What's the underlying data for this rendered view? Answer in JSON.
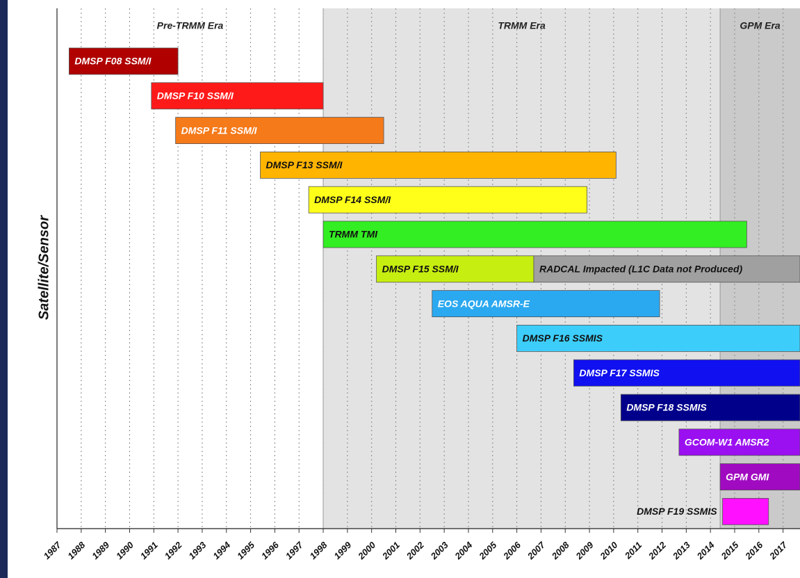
{
  "chart_data": {
    "type": "gantt",
    "y_label": "Satellite/Sensor",
    "xlim": [
      1987,
      2017.7
    ],
    "xticks": [
      1987,
      1988,
      1989,
      1990,
      1991,
      1992,
      1993,
      1994,
      1995,
      1996,
      1997,
      1998,
      1999,
      2000,
      2001,
      2002,
      2003,
      2004,
      2005,
      2006,
      2007,
      2008,
      2009,
      2010,
      2011,
      2012,
      2013,
      2014,
      2015,
      2016,
      2017
    ],
    "grid": true,
    "eras": [
      {
        "label": "Pre-TRMM Era",
        "start": 1987,
        "end": 1998,
        "color": "#ffffff"
      },
      {
        "label": "TRMM Era",
        "start": 1998,
        "end": 2014.4,
        "color": "#e3e3e3"
      },
      {
        "label": "GPM Era",
        "start": 2014.4,
        "end": 2017.7,
        "color": "#cacaca"
      }
    ],
    "rows": [
      {
        "segments": [
          {
            "label": "DMSP F08 SSM/I",
            "start": 1987.5,
            "end": 1992.0,
            "color": "#b00000"
          }
        ]
      },
      {
        "segments": [
          {
            "label": "DMSP F10 SSM/I",
            "start": 1990.9,
            "end": 1998.0,
            "color": "#ff1a1a"
          }
        ]
      },
      {
        "segments": [
          {
            "label": "DMSP F11 SSM/I",
            "start": 1991.9,
            "end": 2000.5,
            "color": "#f57a1a"
          }
        ]
      },
      {
        "segments": [
          {
            "label": "DMSP F13 SSM/I",
            "start": 1995.4,
            "end": 2010.1,
            "color": "#ffb400"
          }
        ]
      },
      {
        "segments": [
          {
            "label": "DMSP F14 SSM/I",
            "start": 1997.4,
            "end": 2008.9,
            "color": "#ffff1a"
          }
        ]
      },
      {
        "segments": [
          {
            "label": "TRMM TMI",
            "start": 1998.0,
            "end": 2015.5,
            "color": "#33ee22"
          }
        ]
      },
      {
        "segments": [
          {
            "label": "DMSP F15 SSM/I",
            "start": 2000.2,
            "end": 2006.7,
            "color": "#c6ee10"
          },
          {
            "label": "RADCAL Impacted (L1C Data not Produced)",
            "start": 2006.7,
            "end": 2017.7,
            "color": "#a0a0a0"
          }
        ]
      },
      {
        "segments": [
          {
            "label": "EOS AQUA AMSR-E",
            "start": 2002.5,
            "end": 2011.9,
            "color": "#2aa8f0"
          }
        ]
      },
      {
        "segments": [
          {
            "label": "DMSP F16 SSMIS",
            "start": 2006.0,
            "end": 2017.7,
            "color": "#3dcdfa"
          }
        ]
      },
      {
        "segments": [
          {
            "label": "DMSP F17 SSMIS",
            "start": 2008.35,
            "end": 2017.7,
            "color": "#1010f0"
          }
        ]
      },
      {
        "segments": [
          {
            "label": "DMSP F18 SSMIS",
            "start": 2010.3,
            "end": 2017.7,
            "color": "#00008b"
          }
        ]
      },
      {
        "segments": [
          {
            "label": "GCOM-W1 AMSR2",
            "start": 2012.7,
            "end": 2017.7,
            "color": "#9a10f0"
          }
        ]
      },
      {
        "segments": [
          {
            "label": "GPM GMI",
            "start": 2014.4,
            "end": 2017.7,
            "color": "#a00ac0"
          }
        ]
      },
      {
        "segments": [
          {
            "label": "DMSP F19 SSMIS",
            "start": 2014.5,
            "end": 2016.4,
            "color": "#ff10ff"
          }
        ]
      }
    ]
  }
}
